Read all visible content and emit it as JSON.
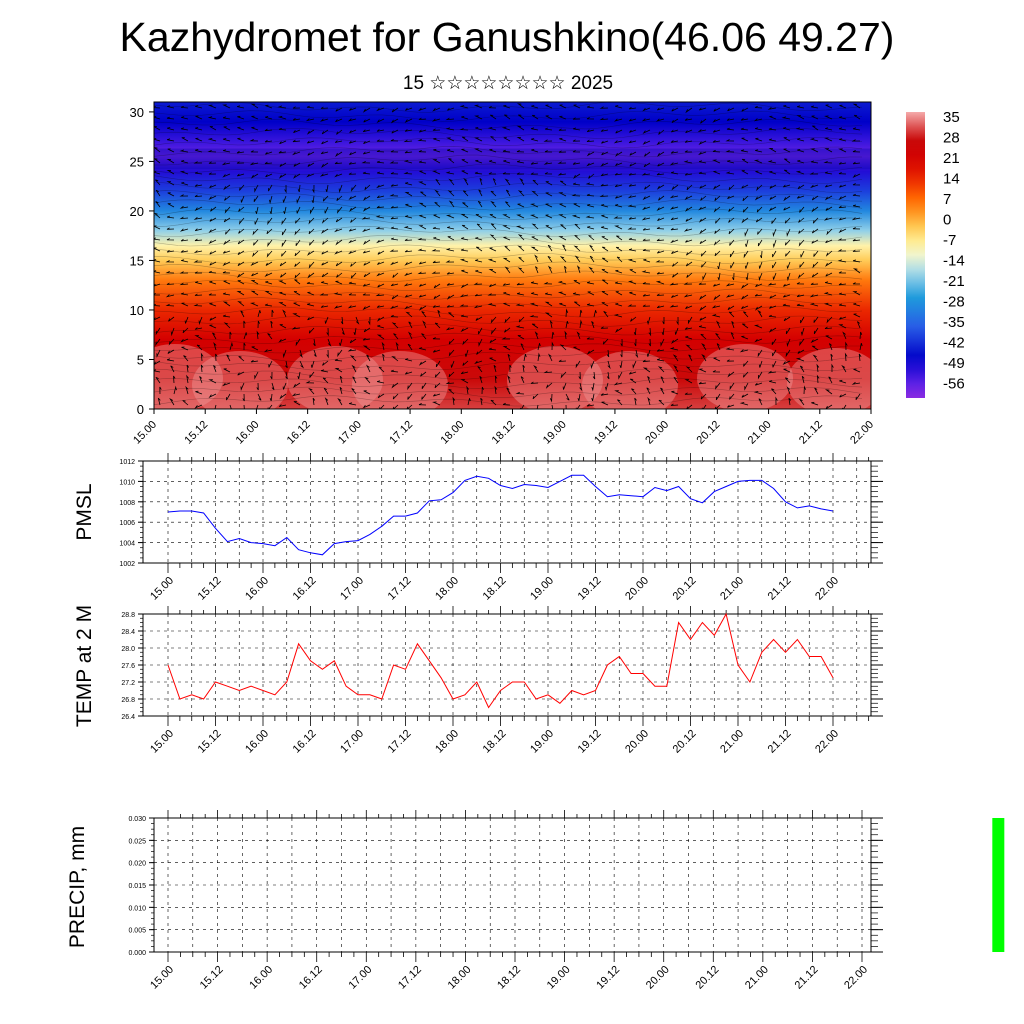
{
  "header": {
    "title": "Kazhydromet for Ganushkino(46.06 49.27)",
    "subtitle": "15 ☆☆☆☆☆☆☆☆ 2025"
  },
  "chart_data": [
    {
      "type": "heatmap",
      "title": "",
      "xlabel": "",
      "ylabel": "",
      "x_ticks": [
        "15.00",
        "15.12",
        "16.00",
        "16.12",
        "17.00",
        "17.12",
        "18.00",
        "18.12",
        "19.00",
        "19.12",
        "20.00",
        "20.12",
        "21.00",
        "21.12",
        "22.00"
      ],
      "y_ticks": [
        "0",
        "5",
        "10",
        "15",
        "20",
        "25",
        "30"
      ],
      "ylim": [
        0,
        31
      ],
      "colorbar_labels": [
        "35",
        "28",
        "21",
        "14",
        "7",
        "0",
        "-7",
        "-14",
        "-21",
        "-28",
        "-35",
        "-42",
        "-49",
        "-56"
      ],
      "colors": {
        "hot": "#d40000",
        "warm": "#ff8c00",
        "mid": "#ffe98a",
        "cool": "#1f9bdc",
        "cold": "#0000c8",
        "coldest": "#8a2be2"
      },
      "levels": [
        {
          "h": 0,
          "t": 30
        },
        {
          "h": 3,
          "t": 26
        },
        {
          "h": 7,
          "t": 20
        },
        {
          "h": 10,
          "t": 14
        },
        {
          "h": 13,
          "t": 6
        },
        {
          "h": 15,
          "t": -2
        },
        {
          "h": 16.5,
          "t": -8
        },
        {
          "h": 18,
          "t": -18
        },
        {
          "h": 20,
          "t": -28
        },
        {
          "h": 22,
          "t": -38
        },
        {
          "h": 24,
          "t": -48
        },
        {
          "h": 25.5,
          "t": -55
        },
        {
          "h": 27,
          "t": -50
        },
        {
          "h": 29,
          "t": -45
        },
        {
          "h": 31,
          "t": -42
        }
      ],
      "vectors_shown": true
    },
    {
      "type": "line",
      "ylabel": "PMSL",
      "color": "#0000ff",
      "ylim": [
        1002,
        1012
      ],
      "y_ticks": [
        "1002",
        "1004",
        "1006",
        "1008",
        "1010",
        "1012"
      ],
      "x_ticks": [
        "15.00",
        "15.12",
        "16.00",
        "16.12",
        "17.00",
        "17.12",
        "18.00",
        "18.12",
        "19.00",
        "19.12",
        "20.00",
        "20.12",
        "21.00",
        "21.12",
        "22.00"
      ],
      "values": [
        1007.0,
        1007.1,
        1007.1,
        1006.9,
        1005.4,
        1004.1,
        1004.4,
        1004.0,
        1003.9,
        1003.7,
        1004.5,
        1003.3,
        1003.0,
        1002.8,
        1003.9,
        1004.1,
        1004.2,
        1004.8,
        1005.6,
        1006.6,
        1006.6,
        1006.9,
        1008.1,
        1008.2,
        1008.9,
        1010.1,
        1010.5,
        1010.3,
        1009.6,
        1009.3,
        1009.7,
        1009.6,
        1009.4,
        1010.0,
        1010.6,
        1010.6,
        1009.5,
        1008.5,
        1008.7,
        1008.6,
        1008.5,
        1009.4,
        1009.1,
        1009.5,
        1008.3,
        1007.9,
        1009.0,
        1009.5,
        1010.0,
        1010.1,
        1010.1,
        1009.3,
        1008.0,
        1007.4,
        1007.6,
        1007.3,
        1007.1
      ]
    },
    {
      "type": "line",
      "ylabel": "TEMP at 2 M",
      "color": "#ff0000",
      "ylim": [
        26.4,
        28.8
      ],
      "y_ticks": [
        "26.4",
        "26.8",
        "27.2",
        "27.6",
        "28.0",
        "28.4",
        "28.8"
      ],
      "x_ticks": [
        "15.00",
        "15.12",
        "16.00",
        "16.12",
        "17.00",
        "17.12",
        "18.00",
        "18.12",
        "19.00",
        "19.12",
        "20.00",
        "20.12",
        "21.00",
        "21.12",
        "22.00"
      ],
      "values": [
        27.6,
        26.8,
        26.9,
        26.8,
        27.2,
        27.1,
        27.0,
        27.1,
        27.0,
        26.9,
        27.2,
        28.1,
        27.7,
        27.5,
        27.7,
        27.1,
        26.9,
        26.9,
        26.8,
        27.6,
        27.5,
        28.1,
        27.7,
        27.3,
        26.8,
        26.9,
        27.2,
        26.6,
        27.0,
        27.2,
        27.2,
        26.8,
        26.9,
        26.7,
        27.0,
        26.9,
        27.0,
        27.6,
        27.8,
        27.4,
        27.4,
        27.1,
        27.1,
        28.6,
        28.2,
        28.6,
        28.3,
        28.8,
        27.6,
        27.2,
        27.9,
        28.2,
        27.9,
        28.2,
        27.8,
        27.8,
        27.3
      ]
    },
    {
      "type": "bar",
      "ylabel": "PRECIP, mm",
      "color": "#00ff00",
      "ylim": [
        0,
        0.03
      ],
      "y_ticks": [
        "0.000",
        "0.005",
        "0.010",
        "0.015",
        "0.020",
        "0.025",
        "0.030"
      ],
      "x_ticks": [
        "15.00",
        "15.12",
        "16.00",
        "16.12",
        "17.00",
        "17.12",
        "18.00",
        "18.12",
        "19.00",
        "19.12",
        "20.00",
        "20.12",
        "21.00",
        "21.12",
        "22.00"
      ],
      "bars": [
        {
          "x_step": 67,
          "value": 0.03
        }
      ]
    }
  ]
}
